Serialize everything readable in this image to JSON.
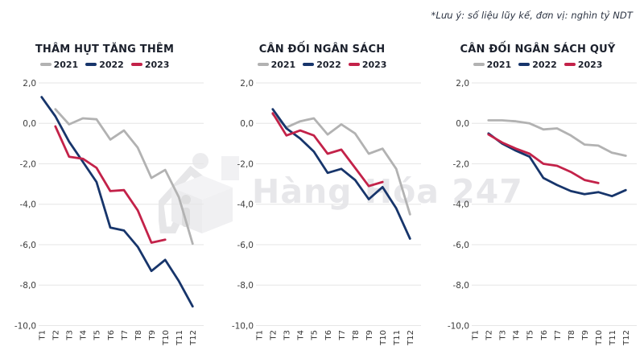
{
  "note": "*Lưu ý: số liệu lũy kế, đơn vị: nghìn tỷ NDT",
  "watermark": {
    "text": "Hàng Hóa 247",
    "logo": "cube-figure-logo"
  },
  "colors": {
    "y2021": "#b2b2b2",
    "y2022": "#17356b",
    "y2023": "#c32249",
    "grid": "#e6e6e6",
    "title_text": "#1b202c",
    "axis_text": "#3d3d3d",
    "note_text": "#2b3342",
    "watermark_text": "#e7e7ea"
  },
  "axis": {
    "x_labels": [
      "T1",
      "T2",
      "T3",
      "T4",
      "T5",
      "T6",
      "T7",
      "T8",
      "T9",
      "T10",
      "T11",
      "T12"
    ],
    "y_ticks": [
      2,
      0,
      -2,
      -4,
      -6,
      -8,
      -10
    ],
    "y_tick_labels": [
      "2,0",
      "0,0",
      "-2,0",
      "-4,0",
      "-6,0",
      "-8,0",
      "-10,0"
    ]
  },
  "chart_data": [
    {
      "type": "line",
      "title": "THÂM HỤT TĂNG THÊM",
      "x": [
        "T1",
        "T2",
        "T3",
        "T4",
        "T5",
        "T6",
        "T7",
        "T8",
        "T9",
        "T10",
        "T11",
        "T12"
      ],
      "ylim": [
        -10,
        2
      ],
      "grid": "horizontal",
      "legend_position": "top",
      "series": [
        {
          "name": "2021",
          "color": "#b2b2b2",
          "values": [
            null,
            0.7,
            -0.05,
            0.25,
            0.2,
            -0.8,
            -0.35,
            -1.2,
            -2.7,
            -2.3,
            -3.65,
            -5.95
          ]
        },
        {
          "name": "2022",
          "color": "#17356b",
          "values": [
            1.3,
            0.35,
            -0.9,
            -1.9,
            -2.9,
            -5.15,
            -5.3,
            -6.1,
            -7.3,
            -6.75,
            -7.8,
            -9.05
          ]
        },
        {
          "name": "2023",
          "color": "#c32249",
          "values": [
            null,
            -0.15,
            -1.65,
            -1.75,
            -2.2,
            -3.35,
            -3.3,
            -4.3,
            -5.9,
            -5.75,
            null,
            null
          ]
        }
      ]
    },
    {
      "type": "line",
      "title": "CÂN ĐỐI NGÂN SÁCH",
      "x": [
        "T1",
        "T2",
        "T3",
        "T4",
        "T5",
        "T6",
        "T7",
        "T8",
        "T9",
        "T10",
        "T11",
        "T12"
      ],
      "ylim": [
        -10,
        2
      ],
      "grid": "horizontal",
      "legend_position": "top",
      "series": [
        {
          "name": "2021",
          "color": "#b2b2b2",
          "values": [
            null,
            0.45,
            -0.2,
            0.1,
            0.25,
            -0.55,
            -0.05,
            -0.5,
            -1.5,
            -1.25,
            -2.25,
            -4.5
          ]
        },
        {
          "name": "2022",
          "color": "#17356b",
          "values": [
            null,
            0.7,
            -0.25,
            -0.75,
            -1.4,
            -2.45,
            -2.25,
            -2.8,
            -3.75,
            -3.15,
            -4.2,
            -5.7
          ]
        },
        {
          "name": "2023",
          "color": "#c32249",
          "values": [
            null,
            0.5,
            -0.6,
            -0.35,
            -0.6,
            -1.5,
            -1.3,
            -2.2,
            -3.1,
            -2.9,
            null,
            null
          ]
        }
      ]
    },
    {
      "type": "line",
      "title": "CÂN ĐỐI NGÂN SÁCH QUỸ",
      "x": [
        "T1",
        "T2",
        "T3",
        "T4",
        "T5",
        "T6",
        "T7",
        "T8",
        "T9",
        "T10",
        "T11",
        "T12"
      ],
      "ylim": [
        -10,
        2
      ],
      "grid": "horizontal",
      "legend_position": "top",
      "series": [
        {
          "name": "2021",
          "color": "#b2b2b2",
          "values": [
            null,
            0.15,
            0.15,
            0.1,
            0.0,
            -0.3,
            -0.25,
            -0.6,
            -1.05,
            -1.1,
            -1.45,
            -1.6
          ]
        },
        {
          "name": "2022",
          "color": "#17356b",
          "values": [
            null,
            -0.5,
            -1.0,
            -1.35,
            -1.65,
            -2.7,
            -3.05,
            -3.35,
            -3.5,
            -3.4,
            -3.6,
            -3.3
          ]
        },
        {
          "name": "2023",
          "color": "#c32249",
          "values": [
            null,
            -0.55,
            -0.95,
            -1.25,
            -1.5,
            -2.0,
            -2.1,
            -2.4,
            -2.8,
            -2.95,
            null,
            null
          ]
        }
      ]
    }
  ]
}
